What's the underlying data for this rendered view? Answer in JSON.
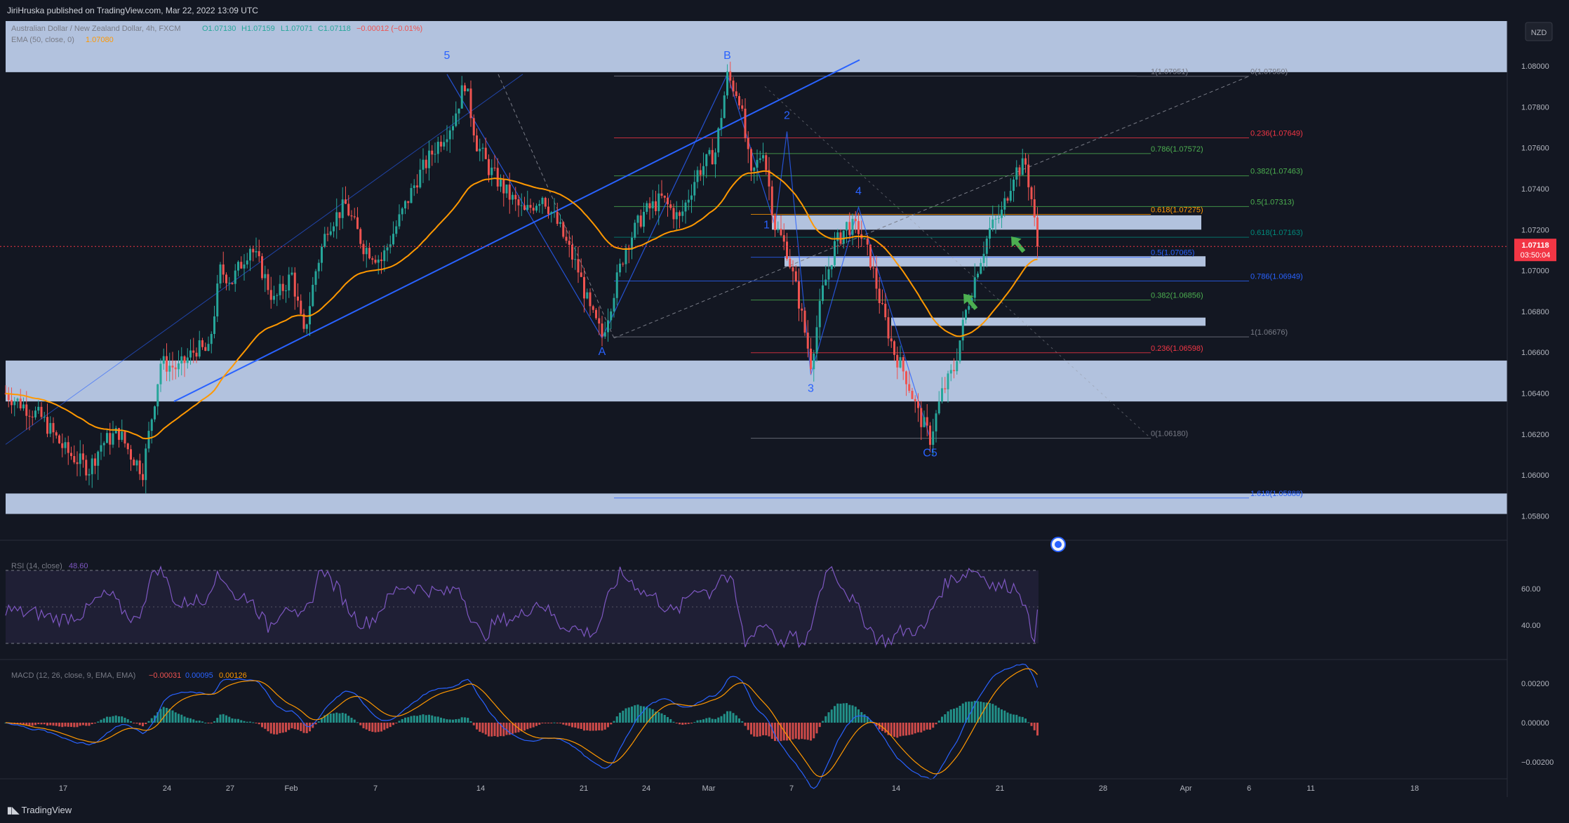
{
  "header": {
    "published": "JiriHruska published on TradingView.com, Mar 22, 2022 13:09 UTC"
  },
  "footer": {
    "brand": "TradingView"
  },
  "legend": {
    "symbol": "Australian Dollar / New Zealand Dollar, 4h, FXCM",
    "open": "O1.07130",
    "high": "H1.07159",
    "low": "L1.07071",
    "close": "C1.07118",
    "change": "−0.00012 (−0.01%)",
    "ema_label": "EMA (50, close, 0)",
    "ema_value": "1.07080",
    "rsi_label": "RSI (14, close)",
    "rsi_value": "48.60",
    "macd_label": "MACD (12, 26, close, 9, EMA, EMA)",
    "macd_hist": "−0.00031",
    "macd_line": "0.00095",
    "macd_signal": "0.00126"
  },
  "colors": {
    "background": "#131722",
    "up": "#26a69a",
    "down": "#ef5350",
    "ema": "#ff9800",
    "zone": "#cfe1ff",
    "wave_line": "#2962ff",
    "rsi": "#7e57c2",
    "macd": "#2962ff",
    "signal": "#ff9800",
    "fib_green": "#4caf50",
    "fib_red": "#f23645"
  },
  "price_axis": {
    "currency": "NZD",
    "ticks": [
      "1.08000",
      "1.07800",
      "1.07600",
      "1.07400",
      "1.07200",
      "1.07000",
      "1.06800",
      "1.06600",
      "1.06400",
      "1.06200",
      "1.06000",
      "1.05800"
    ],
    "last_price": "1.07118",
    "countdown": "03:50:04"
  },
  "rsi_axis": {
    "ticks": [
      "60.00",
      "40.00"
    ]
  },
  "macd_axis": {
    "ticks": [
      "0.00200",
      "0.00000",
      "−0.00200"
    ]
  },
  "time_axis": [
    "17",
    "24",
    "27",
    "Feb",
    "7",
    "14",
    "21",
    "24",
    "Mar",
    "7",
    "14",
    "21",
    "28",
    "Apr",
    "6",
    "11",
    "18"
  ],
  "wave_labels": [
    "5",
    "B",
    "2",
    "4",
    "1",
    "A",
    "3",
    "C5"
  ],
  "fib_labels": [
    "1(1.07951)",
    "0(1.07950)",
    "0.236(1.07649)",
    "0.786(1.07572)",
    "0.382(1.07463)",
    "0.5(1.07313)",
    "0.618(1.07275)",
    "0.618(1.07163)",
    "0.5(1.07065)",
    "0.786(1.06949)",
    "0.382(1.06856)",
    "1(1.06676)",
    "0.236(1.06598)",
    "0(1.06180)",
    "1.618(1.05888)"
  ],
  "chart_data": {
    "type": "candlestick",
    "symbol": "AUDNZD",
    "timeframe": "4h",
    "x_labels": [
      "17",
      "24",
      "27",
      "Feb",
      "7",
      "14",
      "21",
      "24",
      "Mar",
      "7",
      "14",
      "21",
      "28",
      "Apr",
      "6",
      "11",
      "18"
    ],
    "ylim": [
      1.0575,
      1.0822
    ],
    "price_path": [
      [
        0,
        1.064
      ],
      [
        12,
        1.0628
      ],
      [
        20,
        1.0612
      ],
      [
        28,
        1.0603
      ],
      [
        32,
        1.0615
      ],
      [
        38,
        1.0621
      ],
      [
        42,
        1.061
      ],
      [
        46,
        1.0602
      ],
      [
        52,
        1.0655
      ],
      [
        58,
        1.0652
      ],
      [
        64,
        1.0662
      ],
      [
        68,
        1.066
      ],
      [
        72,
        1.07
      ],
      [
        76,
        1.0695
      ],
      [
        82,
        1.0712
      ],
      [
        86,
        1.07
      ],
      [
        90,
        1.0685
      ],
      [
        96,
        1.0698
      ],
      [
        100,
        1.0668
      ],
      [
        104,
        1.07
      ],
      [
        108,
        1.0722
      ],
      [
        114,
        1.0732
      ],
      [
        120,
        1.0712
      ],
      [
        126,
        1.0705
      ],
      [
        132,
        1.0725
      ],
      [
        138,
        1.0745
      ],
      [
        144,
        1.076
      ],
      [
        150,
        1.0773
      ],
      [
        154,
        1.0792
      ],
      [
        158,
        1.0762
      ],
      [
        162,
        1.075
      ],
      [
        168,
        1.0738
      ],
      [
        174,
        1.0728
      ],
      [
        180,
        1.0737
      ],
      [
        186,
        1.072
      ],
      [
        192,
        1.07
      ],
      [
        196,
        1.068
      ],
      [
        200,
        1.0668
      ],
      [
        204,
        1.069
      ],
      [
        208,
        1.0712
      ],
      [
        214,
        1.0728
      ],
      [
        220,
        1.0735
      ],
      [
        226,
        1.0725
      ],
      [
        232,
        1.0748
      ],
      [
        238,
        1.0758
      ],
      [
        242,
        1.0795
      ],
      [
        246,
        1.0785
      ],
      [
        250,
        1.0745
      ],
      [
        254,
        1.076
      ],
      [
        258,
        1.0722
      ],
      [
        262,
        1.071
      ],
      [
        266,
        1.0685
      ],
      [
        270,
        1.0655
      ],
      [
        274,
        1.069
      ],
      [
        278,
        1.0712
      ],
      [
        282,
        1.0722
      ],
      [
        286,
        1.072
      ],
      [
        290,
        1.0705
      ],
      [
        294,
        1.068
      ],
      [
        298,
        1.066
      ],
      [
        302,
        1.0648
      ],
      [
        306,
        1.063
      ],
      [
        310,
        1.0618
      ],
      [
        314,
        1.064
      ],
      [
        318,
        1.0652
      ],
      [
        322,
        1.068
      ],
      [
        326,
        1.0702
      ],
      [
        330,
        1.072
      ],
      [
        334,
        1.0728
      ],
      [
        338,
        1.0748
      ],
      [
        342,
        1.0752
      ],
      [
        344,
        1.0735
      ],
      [
        346,
        1.0712
      ]
    ],
    "fib_levels": [
      {
        "ratio": "1",
        "price": 1.07951
      },
      {
        "ratio": "0",
        "price": 1.0795
      },
      {
        "ratio": "0.236",
        "price": 1.07649
      },
      {
        "ratio": "0.786",
        "price": 1.07572
      },
      {
        "ratio": "0.382",
        "price": 1.07463
      },
      {
        "ratio": "0.5",
        "price": 1.07313
      },
      {
        "ratio": "0.618",
        "price": 1.07275
      },
      {
        "ratio": "0.618",
        "price": 1.07163
      },
      {
        "ratio": "0.5",
        "price": 1.07065
      },
      {
        "ratio": "0.786",
        "price": 1.06949
      },
      {
        "ratio": "0.382",
        "price": 1.06856
      },
      {
        "ratio": "1",
        "price": 1.06676
      },
      {
        "ratio": "0.236",
        "price": 1.06598
      },
      {
        "ratio": "0",
        "price": 1.0618
      },
      {
        "ratio": "1.618",
        "price": 1.05888
      }
    ],
    "zones": [
      {
        "from": 1.0797,
        "to": 1.0822
      },
      {
        "from": 1.0636,
        "to": 1.0656
      },
      {
        "from": 1.0581,
        "to": 1.0591
      },
      {
        "from": 1.072,
        "to": 1.0727
      },
      {
        "from": 1.0702,
        "to": 1.0707
      },
      {
        "from": 1.0673,
        "to": 1.0677
      }
    ],
    "waves": [
      {
        "label": "5",
        "t": 148,
        "price": 1.0796
      },
      {
        "label": "A",
        "t": 200,
        "price": 1.0667
      },
      {
        "label": "B",
        "t": 242,
        "price": 1.0796
      },
      {
        "label": "1",
        "t": 258,
        "price": 1.0722
      },
      {
        "label": "2",
        "t": 262,
        "price": 1.0768
      },
      {
        "label": "3",
        "t": 270,
        "price": 1.0649
      },
      {
        "label": "4",
        "t": 286,
        "price": 1.0731
      },
      {
        "label": "C5",
        "t": 310,
        "price": 1.0618
      }
    ],
    "last_price": 1.07118,
    "rsi": {
      "current": 48.6,
      "ylim": [
        25,
        75
      ],
      "bands": [
        30,
        70
      ],
      "mid": 50
    },
    "macd": {
      "hist": -0.00031,
      "macd": 0.00095,
      "signal": 0.00126,
      "ylim": [
        -0.0025,
        0.0025
      ]
    }
  }
}
